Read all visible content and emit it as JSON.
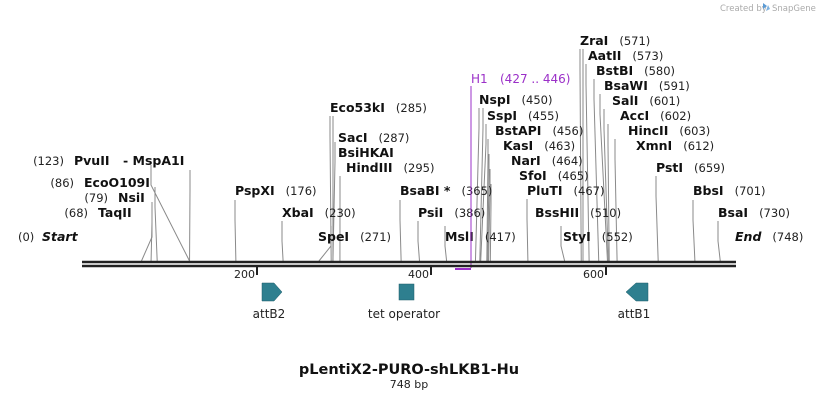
{
  "credit": "Created by",
  "brand": "SnapGene",
  "title": "pLentiX2-PURO-shLKB1-Hu",
  "subtitle": "748 bp",
  "length": 748,
  "ruler": {
    "ticks": [
      200,
      400,
      600
    ]
  },
  "sites": [
    {
      "name": "Start",
      "pos": "(0)",
      "bp": 0,
      "italic": true,
      "namefirst": false
    },
    {
      "name": "TaqII",
      "pos": "(68)",
      "bp": 68,
      "namefirst": false
    },
    {
      "name": "NsiI",
      "pos": "(79)",
      "bp": 79,
      "namefirst": false
    },
    {
      "name": "EcoO109I",
      "pos": "(86)",
      "bp": 86,
      "namefirst": false
    },
    {
      "name": "PvuII",
      "pos": "(123)",
      "bp": 123,
      "namefirst": false
    },
    {
      "name": "- MspA1I",
      "pos": "",
      "bp": 123,
      "namefirst": true
    },
    {
      "name": "PspXI",
      "pos": "(176)",
      "bp": 176,
      "namefirst": true
    },
    {
      "name": "XbaI",
      "pos": "(230)",
      "bp": 230,
      "namefirst": true
    },
    {
      "name": "Eco53kI",
      "pos": "(285)",
      "bp": 285,
      "namefirst": true
    },
    {
      "name": "SacI",
      "pos": "(287)",
      "bp": 287,
      "namefirst": true
    },
    {
      "name": "BsiHKAI",
      "pos": "",
      "bp": 287,
      "namefirst": true
    },
    {
      "name": "HindIII",
      "pos": "(295)",
      "bp": 295,
      "namefirst": true
    },
    {
      "name": "SpeI",
      "pos": "(271)",
      "bp": 271,
      "namefirst": true
    },
    {
      "name": "BsaBI *",
      "pos": "(365)",
      "bp": 365,
      "namefirst": true
    },
    {
      "name": "PsiI",
      "pos": "(386)",
      "bp": 386,
      "namefirst": true
    },
    {
      "name": "MslI",
      "pos": "(417)",
      "bp": 417,
      "namefirst": true
    },
    {
      "name": "NspI",
      "pos": "(450)",
      "bp": 450,
      "namefirst": true
    },
    {
      "name": "SspI",
      "pos": "(455)",
      "bp": 455,
      "namefirst": true
    },
    {
      "name": "BstAPI",
      "pos": "(456)",
      "bp": 456,
      "namefirst": true
    },
    {
      "name": "KasI",
      "pos": "(463)",
      "bp": 463,
      "namefirst": true
    },
    {
      "name": "NarI",
      "pos": "(464)",
      "bp": 464,
      "namefirst": true
    },
    {
      "name": "SfoI",
      "pos": "(465)",
      "bp": 465,
      "namefirst": true
    },
    {
      "name": "PluTI",
      "pos": "(467)",
      "bp": 467,
      "namefirst": true
    },
    {
      "name": "BssHII",
      "pos": "(510)",
      "bp": 510,
      "namefirst": true
    },
    {
      "name": "StyI",
      "pos": "(552)",
      "bp": 552,
      "namefirst": true
    },
    {
      "name": "ZraI",
      "pos": "(571)",
      "bp": 571,
      "namefirst": true
    },
    {
      "name": "AatII",
      "pos": "(573)",
      "bp": 573,
      "namefirst": true
    },
    {
      "name": "BstBI",
      "pos": "(580)",
      "bp": 580,
      "namefirst": true
    },
    {
      "name": "BsaWI",
      "pos": "(591)",
      "bp": 591,
      "namefirst": true
    },
    {
      "name": "SalI",
      "pos": "(601)",
      "bp": 601,
      "namefirst": true
    },
    {
      "name": "AccI",
      "pos": "(602)",
      "bp": 602,
      "namefirst": true
    },
    {
      "name": "HincII",
      "pos": "(603)",
      "bp": 603,
      "namefirst": true
    },
    {
      "name": "XmnI",
      "pos": "(612)",
      "bp": 612,
      "namefirst": true
    },
    {
      "name": "PstI",
      "pos": "(659)",
      "bp": 659,
      "namefirst": true
    },
    {
      "name": "BbsI",
      "pos": "(701)",
      "bp": 701,
      "namefirst": true
    },
    {
      "name": "BsaI",
      "pos": "(730)",
      "bp": 730,
      "namefirst": true
    },
    {
      "name": "End",
      "pos": "(748)",
      "bp": 748,
      "italic": true,
      "namefirst": true
    }
  ],
  "primer": {
    "name": "H1",
    "range": "(427 .. 446)",
    "color": "#9b30c8"
  },
  "features": [
    {
      "name": "attB2",
      "direction": "forward",
      "color": "#2e7f8f"
    },
    {
      "name": "tet operator",
      "direction": "none",
      "color": "#2e7f8f"
    },
    {
      "name": "attB1",
      "direction": "reverse",
      "color": "#2e7f8f"
    }
  ],
  "colors": {
    "backbone": "#222222",
    "leader": "#8a8a8a",
    "feature": "#2e7f8f",
    "primer": "#9b30c8",
    "brand": "#5b9bd5"
  }
}
